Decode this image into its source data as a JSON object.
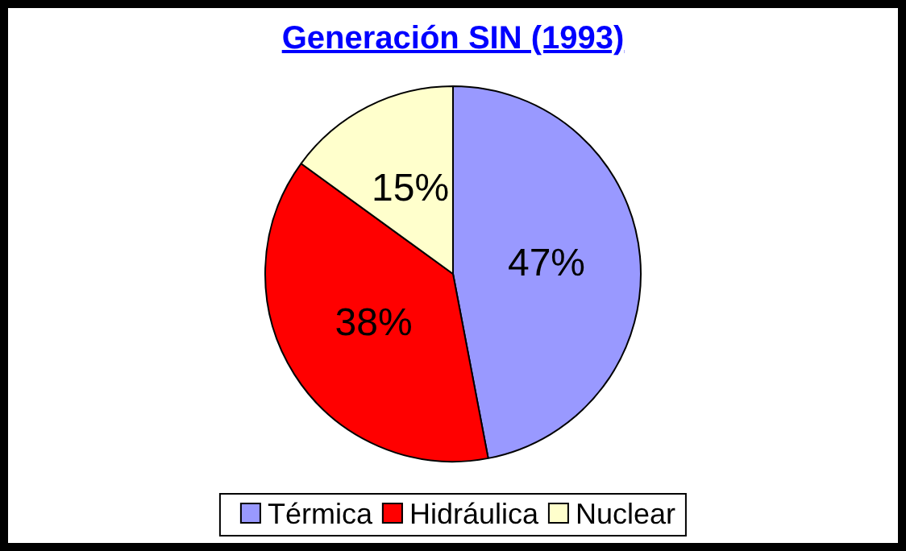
{
  "chart_data": {
    "type": "pie",
    "title": "Generación SIN (1993)",
    "categories": [
      "Térmica",
      "Hidráulica",
      "Nuclear"
    ],
    "values": [
      47,
      38,
      15
    ],
    "colors": [
      "#9999ff",
      "#ff0000",
      "#ffffcc"
    ],
    "value_labels": [
      "47%",
      "38%",
      "15%"
    ],
    "legend": "bottom"
  }
}
